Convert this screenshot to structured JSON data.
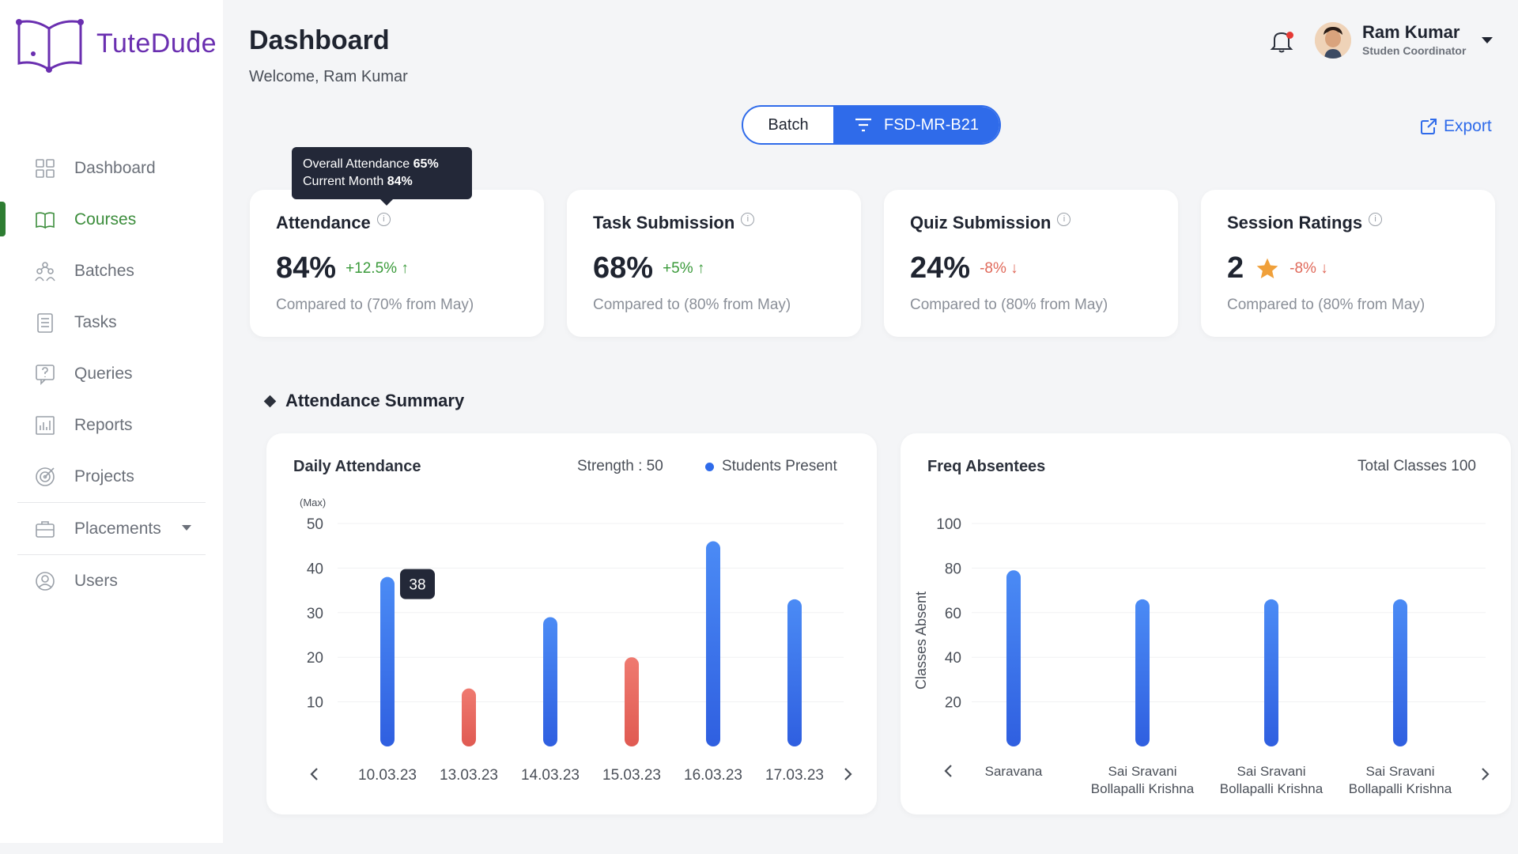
{
  "brand": {
    "name": "TuteDude",
    "color": "#6a2fb0"
  },
  "sidebar": {
    "items": [
      {
        "label": "Dashboard",
        "icon": "grid-icon",
        "active": false
      },
      {
        "label": "Courses",
        "icon": "book-icon",
        "active": true
      },
      {
        "label": "Batches",
        "icon": "people-icon",
        "active": false
      },
      {
        "label": "Tasks",
        "icon": "checklist-icon",
        "active": false
      },
      {
        "label": "Queries",
        "icon": "question-icon",
        "active": false
      },
      {
        "label": "Reports",
        "icon": "report-icon",
        "active": false
      },
      {
        "label": "Projects",
        "icon": "target-icon",
        "active": false
      },
      {
        "label": "Placements",
        "icon": "briefcase-icon",
        "active": false
      },
      {
        "label": "Users",
        "icon": "user-icon",
        "active": false
      }
    ]
  },
  "header": {
    "title": "Dashboard",
    "welcome": "Welcome, Ram Kumar",
    "user_name": "Ram Kumar",
    "user_role": "Studen Coordinator"
  },
  "batch": {
    "label": "Batch",
    "value": "FSD-MR-B21"
  },
  "export_label": "Export",
  "tooltip": {
    "line1_label": "Overall Attendance",
    "line1_value": "65%",
    "line2_label": "Current Month",
    "line2_value": "84%"
  },
  "cards": [
    {
      "title": "Attendance",
      "value": "84%",
      "delta": "+12.5%",
      "direction": "up",
      "sub": "Compared to (70% from May)"
    },
    {
      "title": "Task Submission",
      "value": "68%",
      "delta": "+5%",
      "direction": "up",
      "sub": "Compared to (80% from May)"
    },
    {
      "title": "Quiz Submission",
      "value": "24%",
      "delta": "-8%",
      "direction": "down",
      "sub": "Compared to (80% from May)"
    },
    {
      "title": "Session Ratings",
      "value": "2",
      "delta": "-8%",
      "direction": "down",
      "sub": "Compared to (80% from May)"
    }
  ],
  "section_title": "Attendance Summary",
  "daily_panel": {
    "title": "Daily Attendance",
    "strength": "Strength : 50",
    "legend": "Students Present",
    "max_label": "(Max)"
  },
  "freq_panel": {
    "title": "Freq Absentees",
    "total": "Total Classes 100"
  },
  "colors": {
    "accent": "#2f6bea",
    "low": "#e4675e",
    "active_nav": "#2e7d32"
  },
  "chart_data": [
    {
      "type": "bar",
      "title": "Daily Attendance",
      "categories": [
        "10.03.23",
        "13.03.23",
        "14.03.23",
        "15.03.23",
        "16.03.23",
        "17.03.23"
      ],
      "values": [
        38,
        13,
        29,
        20,
        46,
        33
      ],
      "highlight": [
        "normal",
        "low",
        "normal",
        "low",
        "normal",
        "normal"
      ],
      "yticks": [
        10,
        20,
        30,
        40,
        50
      ],
      "ylim": [
        0,
        50
      ],
      "hover_value": "38",
      "legend": "Students Present"
    },
    {
      "type": "bar",
      "title": "Freq Absentees",
      "categories": [
        [
          "Saravana"
        ],
        [
          "Sai Sravani",
          "Bollapalli Krishna"
        ],
        [
          "Sai Sravani",
          "Bollapalli Krishna"
        ],
        [
          "Sai Sravani",
          "Bollapalli Krishna"
        ]
      ],
      "values": [
        79,
        66,
        66,
        66
      ],
      "yticks": [
        20,
        40,
        60,
        80,
        100
      ],
      "ylim": [
        0,
        100
      ],
      "ylabel": "Classes Absent"
    }
  ]
}
